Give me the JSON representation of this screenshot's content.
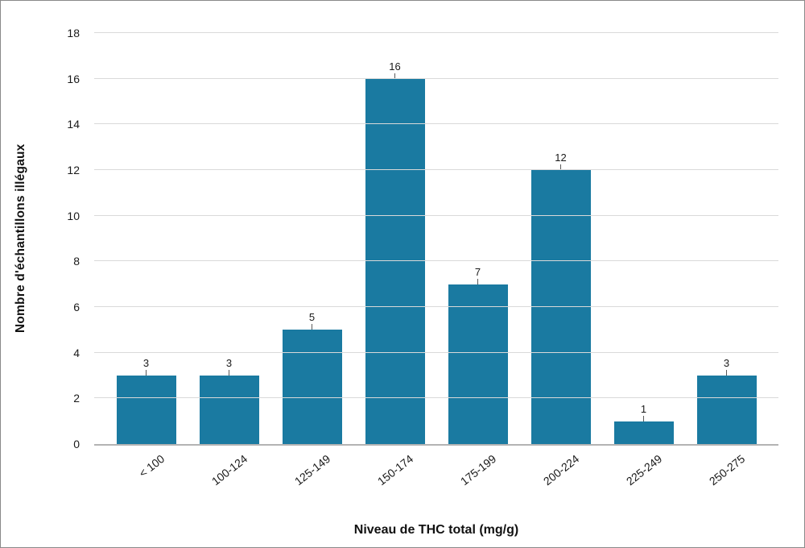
{
  "chart_data": {
    "type": "bar",
    "title": "",
    "categories": [
      "< 100",
      "100-124",
      "125-149",
      "150-174",
      "175-199",
      "200-224",
      "225-249",
      "250-275"
    ],
    "values": [
      3,
      3,
      5,
      16,
      7,
      12,
      1,
      3
    ],
    "xlabel": "Niveau de THC total (mg/g)",
    "ylabel": "Nombre d'échantillons illégaux",
    "ylim": [
      0,
      18
    ],
    "ytick_step": 2,
    "bar_color": "#1a7aa1",
    "grid": "horizontal",
    "legend": "none"
  }
}
